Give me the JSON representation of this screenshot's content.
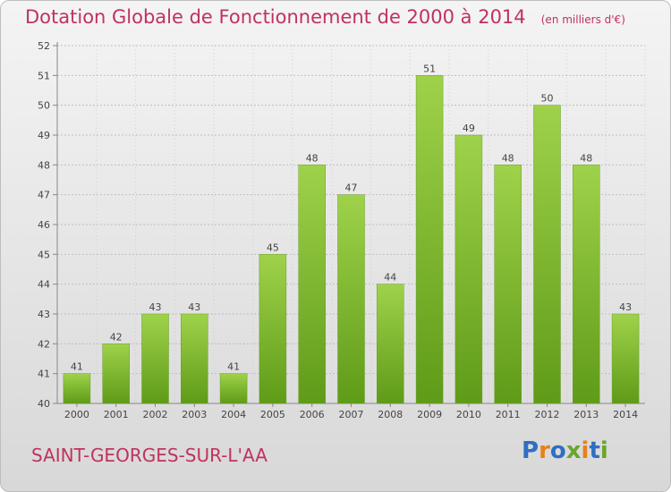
{
  "header": {
    "title": "Dotation Globale de Fonctionnement de 2000 à 2014",
    "subtitle": "(en milliers d'€)"
  },
  "footer": {
    "town": "SAINT-GEORGES-SUR-L'AA",
    "logo_text": "Proxiti",
    "logo_colors": [
      "#2e6fc2",
      "#e8801c",
      "#2e6fc2",
      "#6aa62a",
      "#e8801c",
      "#2e6fc2",
      "#6aa62a"
    ]
  },
  "colors": {
    "bar_top": "#9fd24a",
    "bar_bottom": "#5f9b18",
    "accent": "#c0325e"
  },
  "chart_data": {
    "type": "bar",
    "categories": [
      "2000",
      "2001",
      "2002",
      "2003",
      "2004",
      "2005",
      "2006",
      "2007",
      "2008",
      "2009",
      "2010",
      "2011",
      "2012",
      "2013",
      "2014"
    ],
    "values": [
      41,
      42,
      43,
      43,
      41,
      45,
      48,
      47,
      44,
      51,
      49,
      48,
      50,
      48,
      43
    ],
    "y_ticks": [
      40,
      41,
      42,
      43,
      44,
      45,
      46,
      47,
      48,
      49,
      50,
      51,
      52
    ],
    "ylim": [
      40,
      52
    ],
    "grid": true,
    "data_labels": true
  }
}
